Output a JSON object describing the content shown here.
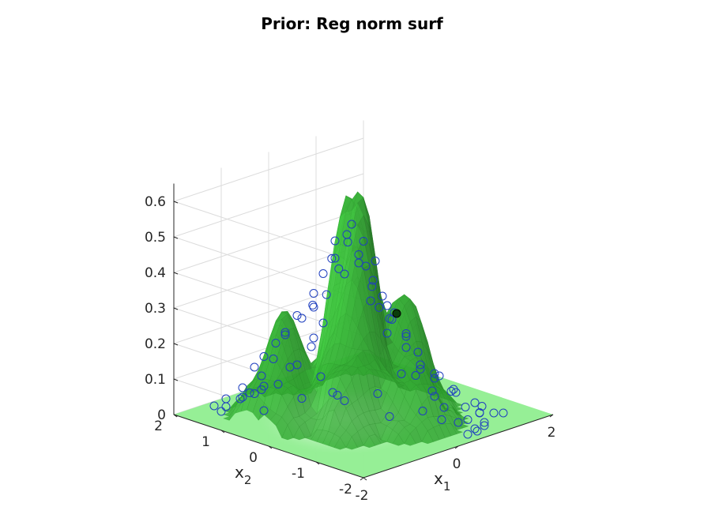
{
  "chart_data": {
    "type": "surface3d",
    "title": "Prior: Reg norm surf",
    "xlabel": "x",
    "xlabel_sub": "1",
    "ylabel": "x",
    "ylabel_sub": "2",
    "zlabel": "",
    "xlim": [
      -2,
      2
    ],
    "ylim": [
      -2,
      2
    ],
    "zlim": [
      0,
      0.65
    ],
    "x_ticks": [
      -2,
      0,
      2
    ],
    "y_ticks": [
      -2,
      -1,
      0,
      1,
      2
    ],
    "z_ticks": [
      0,
      0.1,
      0.2,
      0.3,
      0.4,
      0.5,
      0.6
    ],
    "grid": true,
    "surface_color": "#3cb43c",
    "floor_color": "#90ee90",
    "marker_color": "#1f3fbf",
    "highlight_color": "#0b3d0b",
    "series": [
      {
        "kind": "surface",
        "peaks": [
          {
            "x": -0.15,
            "y": 0.15,
            "z": 0.63
          },
          {
            "x": 0.15,
            "y": 0.25,
            "z": 0.61
          },
          {
            "x": -0.9,
            "y": 0.75,
            "z": 0.3
          },
          {
            "x": 0.45,
            "y": -0.35,
            "z": 0.33
          },
          {
            "x": 0.2,
            "y": -0.75,
            "z": 0.2
          }
        ]
      },
      {
        "kind": "scatter",
        "x": [
          -0.1,
          0.05,
          -0.2,
          0.12,
          -0.05,
          0.2,
          -0.3,
          0.0,
          0.15,
          -0.12,
          -0.25,
          0.08,
          -0.35,
          -0.02,
          0.25,
          -0.15,
          0.3,
          -0.4,
          0.1,
          -0.08,
          -0.5,
          0.05,
          -0.22,
          0.18,
          -0.6,
          -0.45,
          -0.3,
          0.35,
          -0.7,
          -0.1,
          -0.55,
          0.4,
          -0.8,
          -0.35,
          0.2,
          -0.9,
          -0.2,
          0.5,
          -0.65,
          0.45,
          -1.0,
          -0.4,
          0.3,
          -0.75,
          0.55,
          -1.1,
          -0.5,
          0.1,
          -0.85,
          0.6,
          -0.25,
          0.7,
          -0.95,
          0.35,
          -0.6,
          0.8,
          -0.15,
          0.65,
          -0.3,
          0.9,
          0.0,
          0.55,
          -0.7,
          0.85,
          0.2,
          1.0,
          -0.45,
          0.75,
          0.4,
          -0.2,
          1.1,
          0.1,
          0.95,
          -0.55,
          0.6,
          0.3,
          1.05,
          -0.35,
          0.8,
          0.5,
          -1.2,
          -1.4,
          -1.3,
          1.2,
          -0.95,
          1.3,
          0.7,
          -0.8,
          -0.6,
          -0.4,
          0.25,
          0.45,
          -0.05,
          -1.15,
          1.4
        ],
        "y": [
          0.25,
          0.3,
          0.4,
          0.45,
          0.05,
          0.2,
          0.3,
          -0.05,
          -0.1,
          0.55,
          0.15,
          0.6,
          0.5,
          -0.2,
          0.35,
          -0.3,
          0.1,
          0.65,
          -0.4,
          0.7,
          0.55,
          -0.5,
          0.85,
          -0.15,
          0.8,
          0.4,
          1.0,
          -0.05,
          0.95,
          -0.6,
          1.1,
          -0.25,
          1.05,
          0.7,
          -0.7,
          1.2,
          0.9,
          -0.1,
          1.25,
          -0.45,
          1.3,
          1.15,
          -0.85,
          1.4,
          -0.35,
          1.45,
          1.3,
          -1.0,
          1.55,
          -0.6,
          1.15,
          -0.8,
          1.6,
          -1.1,
          1.5,
          -0.4,
          0.75,
          -1.2,
          0.35,
          -0.7,
          -0.8,
          -0.95,
          0.6,
          -1.05,
          -1.3,
          -0.95,
          0.1,
          -1.4,
          -1.3,
          -0.5,
          -1.25,
          -1.55,
          -1.5,
          -0.15,
          -1.6,
          -1.7,
          -1.4,
          -0.9,
          -1.75,
          -1.85,
          1.7,
          1.6,
          1.85,
          -1.55,
          1.95,
          -1.65,
          -1.85,
          1.8,
          1.7,
          1.75,
          -1.95,
          -1.95,
          -1.3,
          0.95,
          -1.1
        ],
        "z": [
          0.5,
          0.52,
          0.48,
          0.46,
          0.45,
          0.47,
          0.44,
          0.42,
          0.43,
          0.42,
          0.4,
          0.38,
          0.39,
          0.37,
          0.4,
          0.34,
          0.36,
          0.33,
          0.32,
          0.31,
          0.3,
          0.29,
          0.28,
          0.3,
          0.27,
          0.26,
          0.24,
          0.32,
          0.22,
          0.26,
          0.2,
          0.28,
          0.19,
          0.2,
          0.25,
          0.15,
          0.16,
          0.25,
          0.13,
          0.22,
          0.12,
          0.1,
          0.2,
          0.08,
          0.18,
          0.06,
          0.05,
          0.15,
          0.03,
          0.14,
          0.1,
          0.12,
          0.02,
          0.1,
          0.04,
          0.11,
          0.08,
          0.09,
          0.06,
          0.1,
          0.15,
          0.12,
          0.05,
          0.08,
          0.1,
          0.06,
          0.07,
          0.05,
          0.06,
          0.09,
          0.04,
          0.05,
          0.03,
          0.07,
          0.03,
          0.04,
          0.02,
          0.05,
          0.02,
          0.02,
          0.0,
          0.0,
          0.0,
          0.02,
          0.0,
          0.02,
          0.02,
          0.0,
          0.01,
          0.01,
          0.02,
          0.02,
          0.07,
          0.02,
          0.01
        ]
      },
      {
        "kind": "highlight",
        "x": 1.05,
        "y": 0.35,
        "z": 0.0
      }
    ]
  }
}
